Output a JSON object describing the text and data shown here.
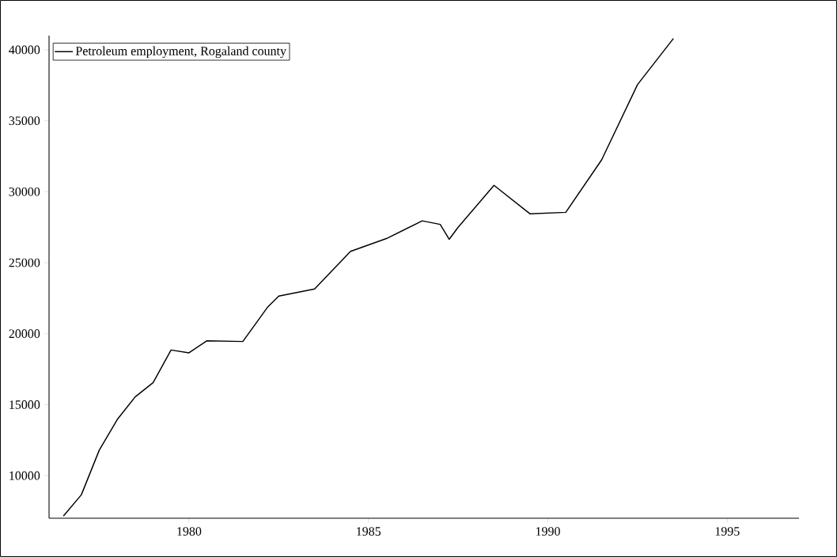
{
  "chart_data": {
    "type": "line",
    "x": [
      1976.5,
      1977,
      1977.5,
      1978,
      1978.5,
      1979,
      1979.5,
      1980,
      1980.5,
      1981.5,
      1982.2,
      1982.5,
      1983.5,
      1984.5,
      1985.5,
      1986.5,
      1987,
      1987.25,
      1987.5,
      1988.5,
      1989.5,
      1990.5,
      1991.5,
      1992.5,
      1993.5
    ],
    "series": [
      {
        "name": "Petroleum employment, Rogaland county",
        "color": "#000000",
        "values": [
          7150,
          8650,
          11800,
          13950,
          15550,
          16550,
          18850,
          18650,
          19500,
          19450,
          21900,
          22650,
          23150,
          25800,
          26700,
          27950,
          27700,
          26650,
          27500,
          30450,
          28450,
          28550,
          32250,
          37550,
          40800
        ]
      }
    ],
    "xlim": [
      1976.1,
      1997
    ],
    "ylim": [
      7000,
      41000
    ],
    "xticks": [
      1980,
      1985,
      1990,
      1995
    ],
    "yticks": [
      10000,
      15000,
      20000,
      25000,
      30000,
      35000,
      40000
    ],
    "legend": "top left",
    "line_style": "solid",
    "marker": "none"
  }
}
